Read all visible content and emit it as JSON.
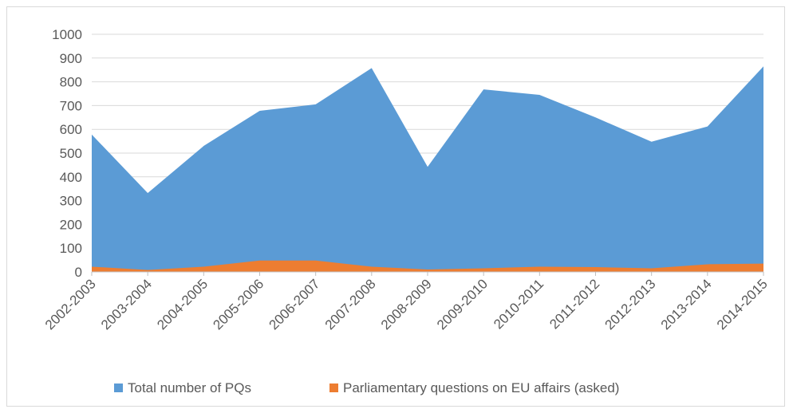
{
  "chart_data": {
    "type": "area",
    "categories": [
      "2002-2003",
      "2003-2004",
      "2004-2005",
      "2005-2006",
      "2006-2007",
      "2007-2008",
      "2008-2009",
      "2009-2010",
      "2010-2011",
      "2011-2012",
      "2012-2013",
      "2013-2014",
      "2014-2015"
    ],
    "series": [
      {
        "name": "Total number of PQs",
        "color": "#5b9bd5",
        "values": [
          578,
          332,
          530,
          678,
          705,
          858,
          442,
          768,
          745,
          650,
          548,
          612,
          865
        ]
      },
      {
        "name": "Parliamentary questions on EU affairs (asked)",
        "color": "#ed7d31",
        "values": [
          22,
          8,
          22,
          48,
          48,
          22,
          10,
          15,
          22,
          20,
          15,
          32,
          35
        ]
      }
    ],
    "yticks": [
      "0",
      "100",
      "200",
      "300",
      "400",
      "500",
      "600",
      "700",
      "800",
      "900",
      "1000"
    ],
    "ylim": [
      0,
      1000
    ],
    "grid": true,
    "legend_position": "bottom",
    "gridline_color": "#d9d9d9",
    "axis_color": "#bfbfbf"
  }
}
